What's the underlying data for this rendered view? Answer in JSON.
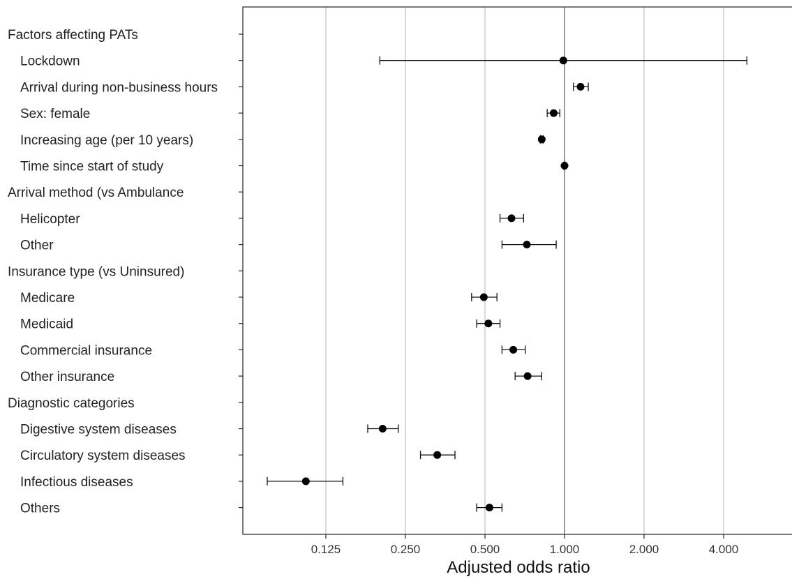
{
  "chart_data": {
    "type": "forest",
    "title": "",
    "xlabel": "Adjusted odds ratio",
    "ylabel": "",
    "x_scale": "log2",
    "xlim": [
      0.0625,
      6.8
    ],
    "x_ticks": [
      0.125,
      0.25,
      0.5,
      1,
      2,
      4
    ],
    "x_tick_labels": [
      "0.125",
      "0.250",
      "0.500",
      "1.000",
      "2.000",
      "4.000"
    ],
    "reference_line": 1,
    "grid": true,
    "rows": [
      {
        "label": "Factors affecting PATs",
        "header": true
      },
      {
        "label": "Lockdown",
        "header": false,
        "or": 0.99,
        "lo": 0.2,
        "hi": 4.9
      },
      {
        "label": "Arrival during non-business hours",
        "header": false,
        "or": 1.15,
        "lo": 1.08,
        "hi": 1.23
      },
      {
        "label": "Sex: female",
        "header": false,
        "or": 0.91,
        "lo": 0.86,
        "hi": 0.96
      },
      {
        "label": "Increasing age (per 10 years)",
        "header": false,
        "or": 0.82,
        "lo": 0.81,
        "hi": 0.83
      },
      {
        "label": "Time since start of study",
        "header": false,
        "or": 1.0,
        "lo": 0.995,
        "hi": 1.005
      },
      {
        "label": "Arrival method (vs Ambulance",
        "header": true
      },
      {
        "label": "Helicopter",
        "header": false,
        "or": 0.63,
        "lo": 0.57,
        "hi": 0.7
      },
      {
        "label": "Other",
        "header": false,
        "or": 0.72,
        "lo": 0.58,
        "hi": 0.93
      },
      {
        "label": "Insurance type (vs Uninsured)",
        "header": true
      },
      {
        "label": "Medicare",
        "header": false,
        "or": 0.495,
        "lo": 0.445,
        "hi": 0.555
      },
      {
        "label": "Medicaid",
        "header": false,
        "or": 0.515,
        "lo": 0.465,
        "hi": 0.57
      },
      {
        "label": "Commercial insurance",
        "header": false,
        "or": 0.64,
        "lo": 0.58,
        "hi": 0.71
      },
      {
        "label": "Other insurance",
        "header": false,
        "or": 0.725,
        "lo": 0.65,
        "hi": 0.82
      },
      {
        "label": "Diagnostic categories",
        "header": true
      },
      {
        "label": "Digestive system diseases",
        "header": false,
        "or": 0.205,
        "lo": 0.18,
        "hi": 0.235
      },
      {
        "label": "Circulatory system diseases",
        "header": false,
        "or": 0.33,
        "lo": 0.285,
        "hi": 0.385
      },
      {
        "label": "Infectious diseases",
        "header": false,
        "or": 0.105,
        "lo": 0.075,
        "hi": 0.145
      },
      {
        "label": "Others",
        "header": false,
        "or": 0.52,
        "lo": 0.465,
        "hi": 0.58
      }
    ]
  }
}
